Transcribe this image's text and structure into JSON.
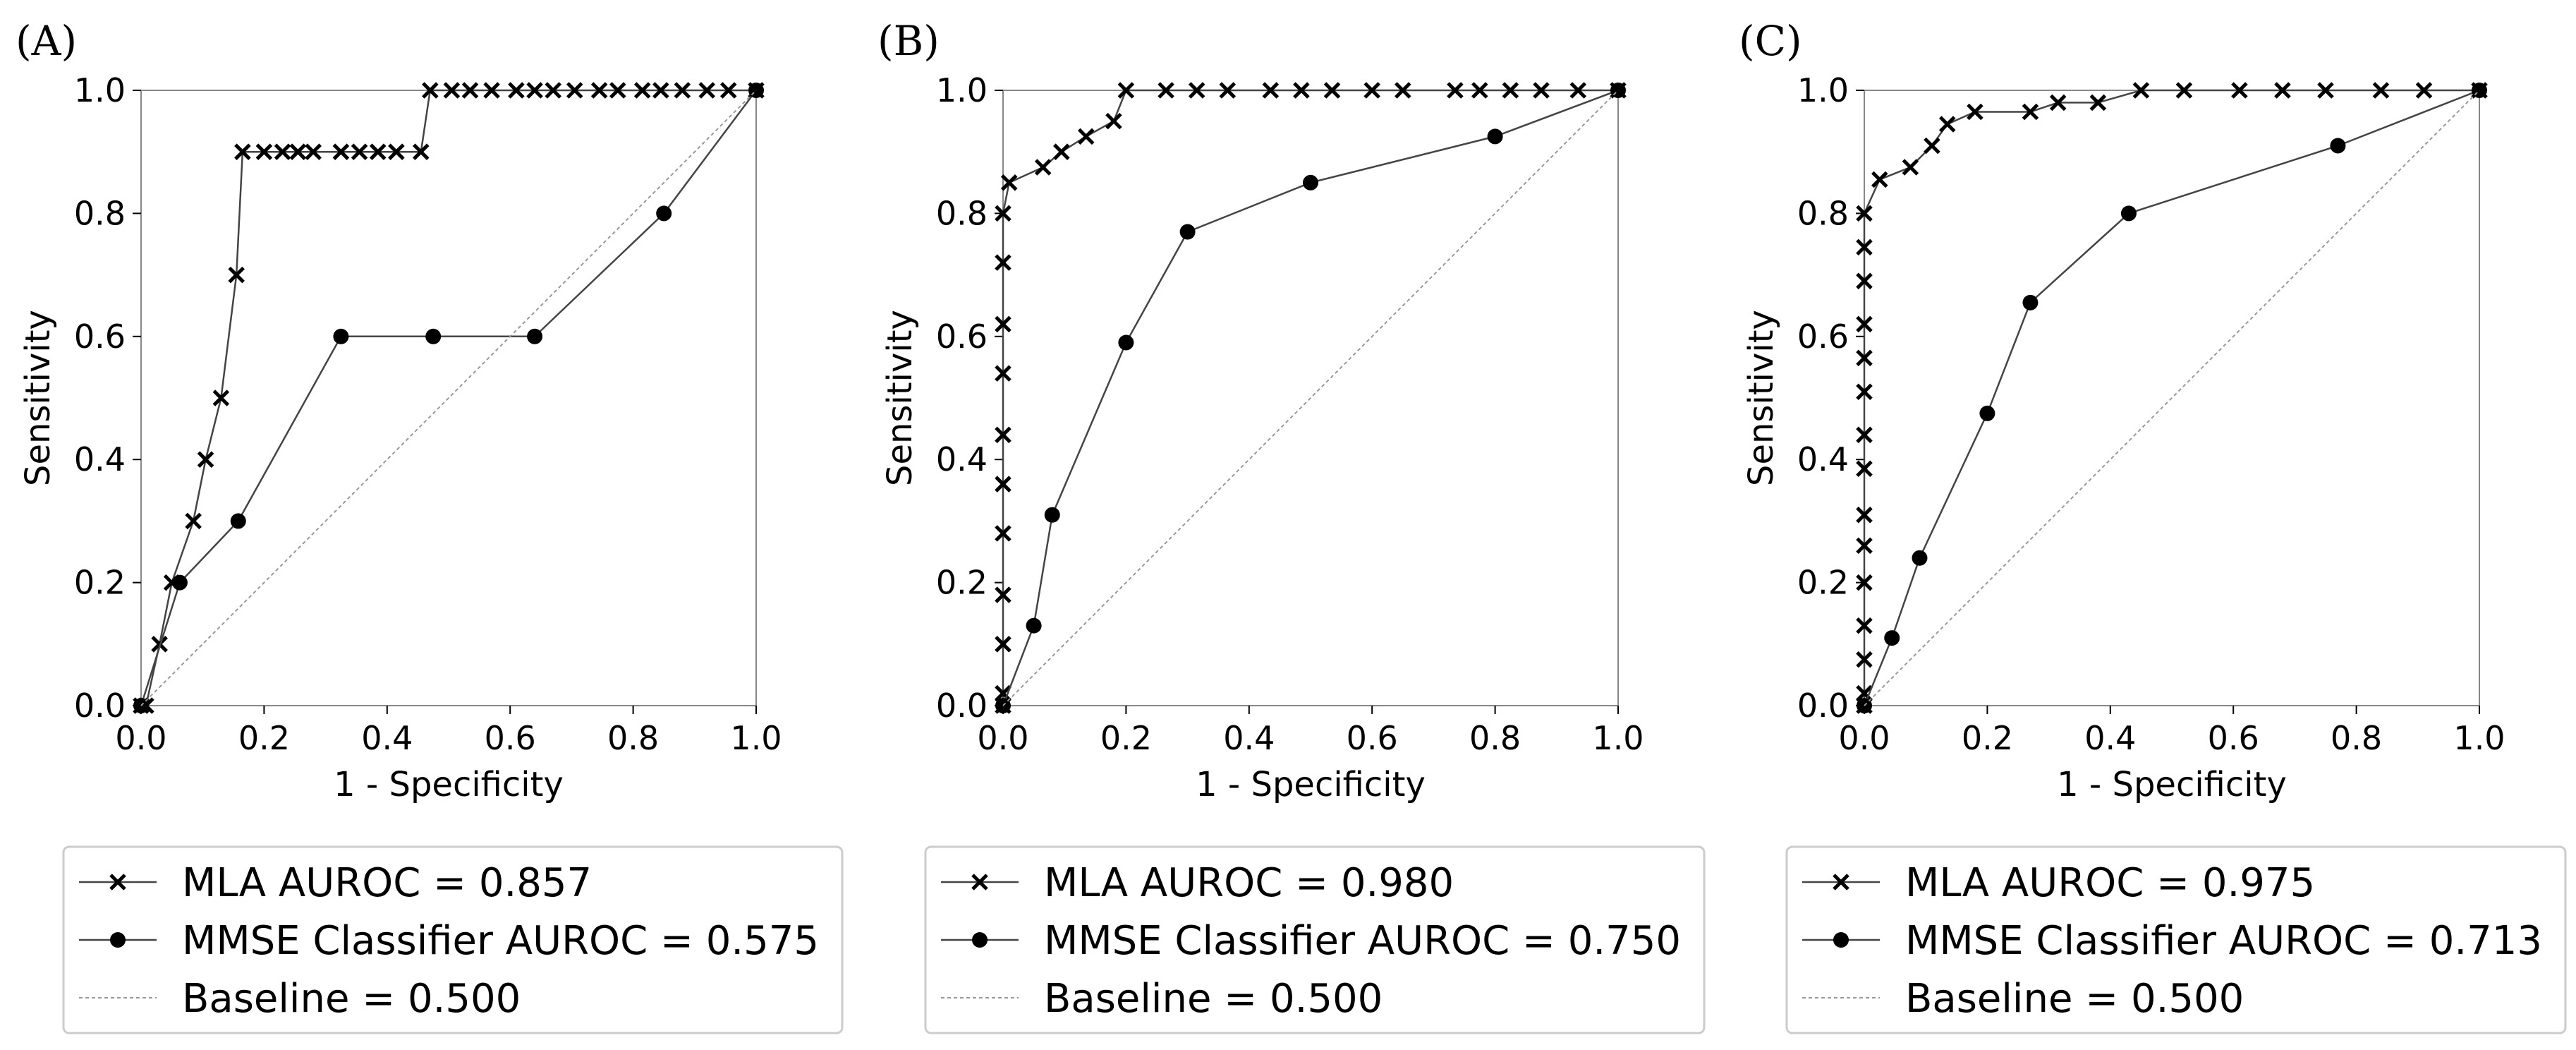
{
  "chart_data": [
    {
      "type": "line",
      "panel_label": "(A)",
      "xlabel": "1 - Specificity",
      "ylabel": "Sensitivity",
      "xlim": [
        0.0,
        1.0
      ],
      "ylim": [
        0.0,
        1.0
      ],
      "x_ticks": [
        "0.0",
        "0.2",
        "0.4",
        "0.6",
        "0.8",
        "1.0"
      ],
      "y_ticks": [
        "0.0",
        "0.2",
        "0.4",
        "0.6",
        "0.8",
        "1.0"
      ],
      "legend_position": "below",
      "series": [
        {
          "name": "MLA AUROC = 0.857",
          "marker": "x",
          "points": [
            [
              0.0,
              0.0
            ],
            [
              0.008,
              0.0
            ],
            [
              0.03,
              0.1
            ],
            [
              0.05,
              0.2
            ],
            [
              0.085,
              0.3
            ],
            [
              0.105,
              0.4
            ],
            [
              0.13,
              0.5
            ],
            [
              0.155,
              0.7
            ],
            [
              0.165,
              0.9
            ],
            [
              0.2,
              0.9
            ],
            [
              0.23,
              0.9
            ],
            [
              0.255,
              0.9
            ],
            [
              0.28,
              0.9
            ],
            [
              0.325,
              0.9
            ],
            [
              0.355,
              0.9
            ],
            [
              0.385,
              0.9
            ],
            [
              0.415,
              0.9
            ],
            [
              0.455,
              0.9
            ],
            [
              0.47,
              1.0
            ],
            [
              0.505,
              1.0
            ],
            [
              0.535,
              1.0
            ],
            [
              0.57,
              1.0
            ],
            [
              0.61,
              1.0
            ],
            [
              0.64,
              1.0
            ],
            [
              0.67,
              1.0
            ],
            [
              0.705,
              1.0
            ],
            [
              0.745,
              1.0
            ],
            [
              0.775,
              1.0
            ],
            [
              0.815,
              1.0
            ],
            [
              0.845,
              1.0
            ],
            [
              0.88,
              1.0
            ],
            [
              0.92,
              1.0
            ],
            [
              0.955,
              1.0
            ],
            [
              1.0,
              1.0
            ]
          ]
        },
        {
          "name": "MMSE Classifier AUROC = 0.575",
          "marker": "o",
          "points": [
            [
              0.0,
              0.0
            ],
            [
              0.063,
              0.2
            ],
            [
              0.158,
              0.3
            ],
            [
              0.325,
              0.6
            ],
            [
              0.475,
              0.6
            ],
            [
              0.64,
              0.6
            ],
            [
              0.85,
              0.8
            ],
            [
              1.0,
              1.0
            ]
          ]
        },
        {
          "name": "Baseline = 0.500",
          "marker": "none",
          "points": [
            [
              0.0,
              0.0
            ],
            [
              1.0,
              1.0
            ]
          ]
        }
      ]
    },
    {
      "type": "line",
      "panel_label": "(B)",
      "xlabel": "1 - Specificity",
      "ylabel": "Sensitivity",
      "xlim": [
        0.0,
        1.0
      ],
      "ylim": [
        0.0,
        1.0
      ],
      "x_ticks": [
        "0.0",
        "0.2",
        "0.4",
        "0.6",
        "0.8",
        "1.0"
      ],
      "y_ticks": [
        "0.0",
        "0.2",
        "0.4",
        "0.6",
        "0.8",
        "1.0"
      ],
      "legend_position": "below",
      "series": [
        {
          "name": "MLA AUROC = 0.980",
          "marker": "x",
          "points": [
            [
              0.0,
              0.0
            ],
            [
              0.0,
              0.02
            ],
            [
              0.0,
              0.1
            ],
            [
              0.0,
              0.18
            ],
            [
              0.0,
              0.28
            ],
            [
              0.0,
              0.36
            ],
            [
              0.0,
              0.44
            ],
            [
              0.0,
              0.54
            ],
            [
              0.0,
              0.62
            ],
            [
              0.0,
              0.72
            ],
            [
              0.0,
              0.8
            ],
            [
              0.01,
              0.85
            ],
            [
              0.065,
              0.875
            ],
            [
              0.095,
              0.9
            ],
            [
              0.135,
              0.925
            ],
            [
              0.18,
              0.95
            ],
            [
              0.2,
              1.0
            ],
            [
              0.265,
              1.0
            ],
            [
              0.315,
              1.0
            ],
            [
              0.365,
              1.0
            ],
            [
              0.435,
              1.0
            ],
            [
              0.485,
              1.0
            ],
            [
              0.535,
              1.0
            ],
            [
              0.6,
              1.0
            ],
            [
              0.65,
              1.0
            ],
            [
              0.735,
              1.0
            ],
            [
              0.775,
              1.0
            ],
            [
              0.825,
              1.0
            ],
            [
              0.875,
              1.0
            ],
            [
              0.935,
              1.0
            ],
            [
              1.0,
              1.0
            ]
          ]
        },
        {
          "name": "MMSE Classifier AUROC = 0.750",
          "marker": "o",
          "points": [
            [
              0.0,
              0.0
            ],
            [
              0.05,
              0.13
            ],
            [
              0.08,
              0.31
            ],
            [
              0.2,
              0.59
            ],
            [
              0.3,
              0.77
            ],
            [
              0.5,
              0.85
            ],
            [
              0.8,
              0.925
            ],
            [
              1.0,
              1.0
            ]
          ]
        },
        {
          "name": "Baseline = 0.500",
          "marker": "none",
          "points": [
            [
              0.0,
              0.0
            ],
            [
              1.0,
              1.0
            ]
          ]
        }
      ]
    },
    {
      "type": "line",
      "panel_label": "(C)",
      "xlabel": "1 - Specificity",
      "ylabel": "Sensitivity",
      "xlim": [
        0.0,
        1.0
      ],
      "ylim": [
        0.0,
        1.0
      ],
      "x_ticks": [
        "0.0",
        "0.2",
        "0.4",
        "0.6",
        "0.8",
        "1.0"
      ],
      "y_ticks": [
        "0.0",
        "0.2",
        "0.4",
        "0.6",
        "0.8",
        "1.0"
      ],
      "legend_position": "below",
      "series": [
        {
          "name": "MLA AUROC = 0.975",
          "marker": "x",
          "points": [
            [
              0.0,
              0.0
            ],
            [
              0.0,
              0.02
            ],
            [
              0.0,
              0.075
            ],
            [
              0.0,
              0.13
            ],
            [
              0.0,
              0.2
            ],
            [
              0.0,
              0.26
            ],
            [
              0.0,
              0.31
            ],
            [
              0.0,
              0.385
            ],
            [
              0.0,
              0.44
            ],
            [
              0.0,
              0.51
            ],
            [
              0.0,
              0.565
            ],
            [
              0.0,
              0.62
            ],
            [
              0.0,
              0.69
            ],
            [
              0.0,
              0.745
            ],
            [
              0.0,
              0.8
            ],
            [
              0.025,
              0.855
            ],
            [
              0.075,
              0.875
            ],
            [
              0.11,
              0.91
            ],
            [
              0.135,
              0.945
            ],
            [
              0.18,
              0.965
            ],
            [
              0.27,
              0.965
            ],
            [
              0.315,
              0.98
            ],
            [
              0.38,
              0.98
            ],
            [
              0.45,
              1.0
            ],
            [
              0.52,
              1.0
            ],
            [
              0.61,
              1.0
            ],
            [
              0.68,
              1.0
            ],
            [
              0.75,
              1.0
            ],
            [
              0.84,
              1.0
            ],
            [
              0.91,
              1.0
            ],
            [
              1.0,
              1.0
            ]
          ]
        },
        {
          "name": "MMSE Classifier AUROC = 0.713",
          "marker": "o",
          "points": [
            [
              0.0,
              0.0
            ],
            [
              0.045,
              0.11
            ],
            [
              0.09,
              0.24
            ],
            [
              0.2,
              0.475
            ],
            [
              0.27,
              0.655
            ],
            [
              0.43,
              0.8
            ],
            [
              0.77,
              0.91
            ],
            [
              1.0,
              1.0
            ]
          ]
        },
        {
          "name": "Baseline = 0.500",
          "marker": "none",
          "points": [
            [
              0.0,
              0.0
            ],
            [
              1.0,
              1.0
            ]
          ]
        }
      ]
    }
  ]
}
